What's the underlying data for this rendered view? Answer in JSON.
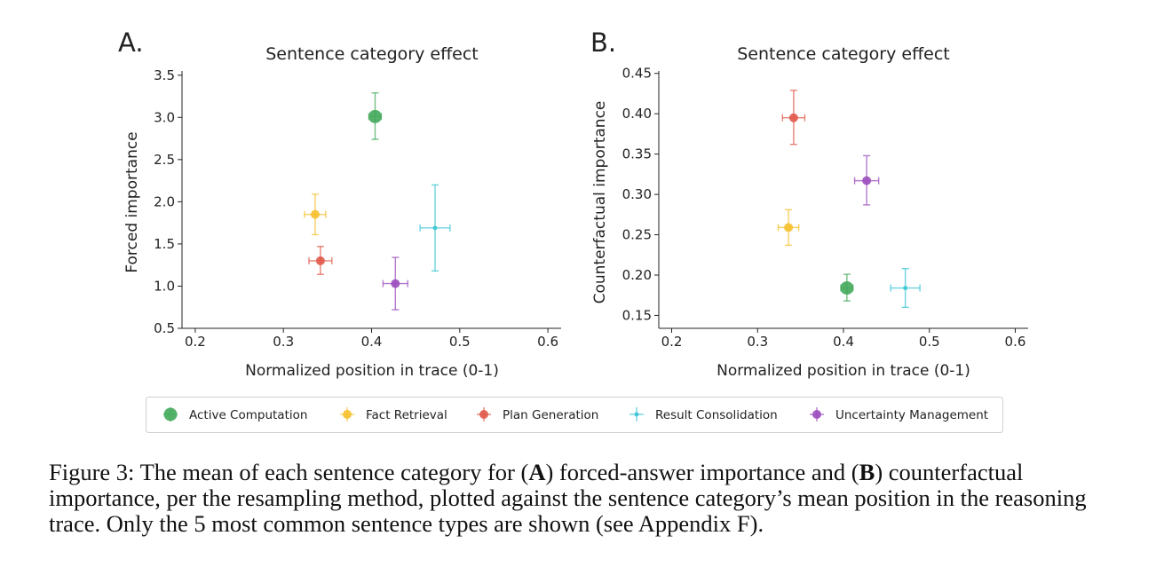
{
  "chart_data": [
    {
      "panel_letter": "A.",
      "type": "scatter",
      "title": "Sentence category effect",
      "xlabel": "Normalized position in trace (0-1)",
      "ylabel": "Forced importance",
      "xlim": [
        0.185,
        0.615
      ],
      "ylim": [
        0.5,
        3.55
      ],
      "xticks": [
        0.2,
        0.3,
        0.4,
        0.5,
        0.6
      ],
      "xtick_labels": [
        "0.2",
        "0.3",
        "0.4",
        "0.5",
        "0.6"
      ],
      "yticks": [
        0.5,
        1.0,
        1.5,
        2.0,
        2.5,
        3.0,
        3.5
      ],
      "ytick_labels": [
        "0.5",
        "1.0",
        "1.5",
        "2.0",
        "2.5",
        "3.0",
        "3.5"
      ],
      "grid": false,
      "series": [
        {
          "name": "Active Computation",
          "x": 0.404,
          "y": 3.01,
          "xerr": 0.007,
          "yerr_low": 0.27,
          "yerr_high": 0.28
        },
        {
          "name": "Fact Retrieval",
          "x": 0.336,
          "y": 1.85,
          "xerr": 0.012,
          "yerr_low": 0.24,
          "yerr_high": 0.24
        },
        {
          "name": "Plan Generation",
          "x": 0.342,
          "y": 1.3,
          "xerr": 0.013,
          "yerr_low": 0.16,
          "yerr_high": 0.17
        },
        {
          "name": "Result Consolidation",
          "x": 0.472,
          "y": 1.69,
          "xerr": 0.017,
          "yerr_low": 0.51,
          "yerr_high": 0.51
        },
        {
          "name": "Uncertainty Management",
          "x": 0.427,
          "y": 1.03,
          "xerr": 0.014,
          "yerr_low": 0.31,
          "yerr_high": 0.31
        }
      ]
    },
    {
      "panel_letter": "B.",
      "type": "scatter",
      "title": "Sentence category effect",
      "xlabel": "Normalized position in trace (0-1)",
      "ylabel": "Counterfactual importance",
      "xlim": [
        0.185,
        0.615
      ],
      "ylim": [
        0.134,
        0.453
      ],
      "xticks": [
        0.2,
        0.3,
        0.4,
        0.5,
        0.6
      ],
      "xtick_labels": [
        "0.2",
        "0.3",
        "0.4",
        "0.5",
        "0.6"
      ],
      "yticks": [
        0.15,
        0.2,
        0.25,
        0.3,
        0.35,
        0.4,
        0.45
      ],
      "ytick_labels": [
        "0.15",
        "0.20",
        "0.25",
        "0.30",
        "0.35",
        "0.40",
        "0.45"
      ],
      "grid": false,
      "series": [
        {
          "name": "Active Computation",
          "x": 0.404,
          "y": 0.184,
          "xerr": 0.007,
          "yerr_low": 0.016,
          "yerr_high": 0.017
        },
        {
          "name": "Fact Retrieval",
          "x": 0.336,
          "y": 0.259,
          "xerr": 0.012,
          "yerr_low": 0.022,
          "yerr_high": 0.022
        },
        {
          "name": "Plan Generation",
          "x": 0.342,
          "y": 0.395,
          "xerr": 0.013,
          "yerr_low": 0.033,
          "yerr_high": 0.034
        },
        {
          "name": "Result Consolidation",
          "x": 0.472,
          "y": 0.184,
          "xerr": 0.017,
          "yerr_low": 0.024,
          "yerr_high": 0.024
        },
        {
          "name": "Uncertainty Management",
          "x": 0.427,
          "y": 0.317,
          "xerr": 0.014,
          "yerr_low": 0.03,
          "yerr_high": 0.031
        }
      ]
    }
  ],
  "categories": [
    {
      "name": "Active Computation",
      "color": "#44AA5B",
      "size": "large"
    },
    {
      "name": "Fact Retrieval",
      "color": "#F6C02D",
      "size": "medium"
    },
    {
      "name": "Plan Generation",
      "color": "#E0594A",
      "size": "medium"
    },
    {
      "name": "Result Consolidation",
      "color": "#3BC6D4",
      "size": "small"
    },
    {
      "name": "Uncertainty Management",
      "color": "#9B4DBC",
      "size": "medium"
    }
  ],
  "legend": {
    "placement": "bottom-center",
    "items": [
      "Active Computation",
      "Fact Retrieval",
      "Plan Generation",
      "Result Consolidation",
      "Uncertainty Management"
    ]
  },
  "caption": {
    "prefix": "Figure 3: The mean of each sentence category for (",
    "bold_a": "A",
    "middle": ") forced-answer importance and (",
    "bold_b": "B",
    "suffix": ") counterfactual importance, per the resampling method, plotted against the sentence category’s mean position in the reasoning trace. Only the 5 most common sentence types are shown (see Appendix F)."
  }
}
